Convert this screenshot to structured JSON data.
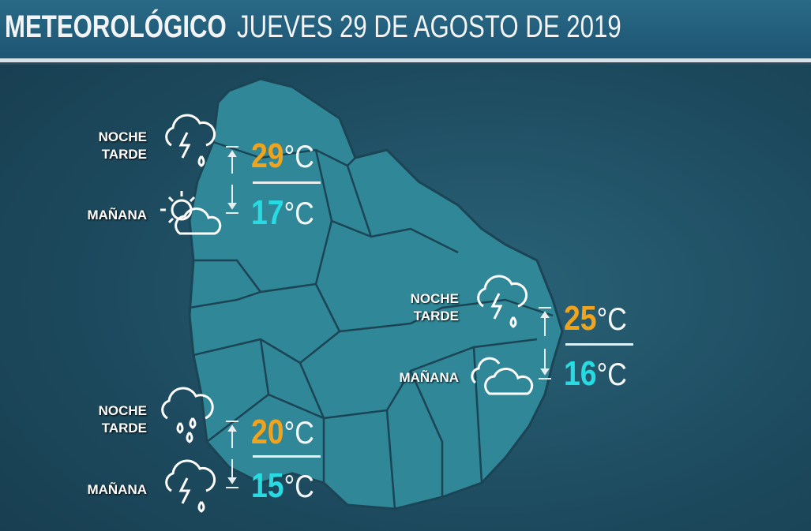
{
  "header": {
    "title": "METEOROLÓGICO",
    "date": "JUEVES 29 DE AGOSTO DE 2019"
  },
  "colors": {
    "max": "#f0a41e",
    "min": "#27dbe2",
    "map": "#2f8a9a",
    "background": "#1d4a5e"
  },
  "forecasts": [
    {
      "region": "north",
      "label_top1": "NOCHE",
      "label_top2": "TARDE",
      "label_bottom": "MAÑANA",
      "icon_top": "thunderstorm-rain-icon",
      "icon_bottom": "partly-cloudy-icon",
      "max": "29",
      "min": "17",
      "unit": "°C"
    },
    {
      "region": "east",
      "label_top1": "NOCHE",
      "label_top2": "TARDE",
      "label_bottom": "MAÑANA",
      "icon_top": "thunderstorm-rain-icon",
      "icon_bottom": "cloudy-icon",
      "max": "25",
      "min": "16",
      "unit": "°C"
    },
    {
      "region": "south",
      "label_top1": "NOCHE",
      "label_top2": "TARDE",
      "label_bottom": "MAÑANA",
      "icon_top": "rain-icon",
      "icon_bottom": "thunderstorm-rain-icon",
      "max": "20",
      "min": "15",
      "unit": "°C"
    }
  ]
}
